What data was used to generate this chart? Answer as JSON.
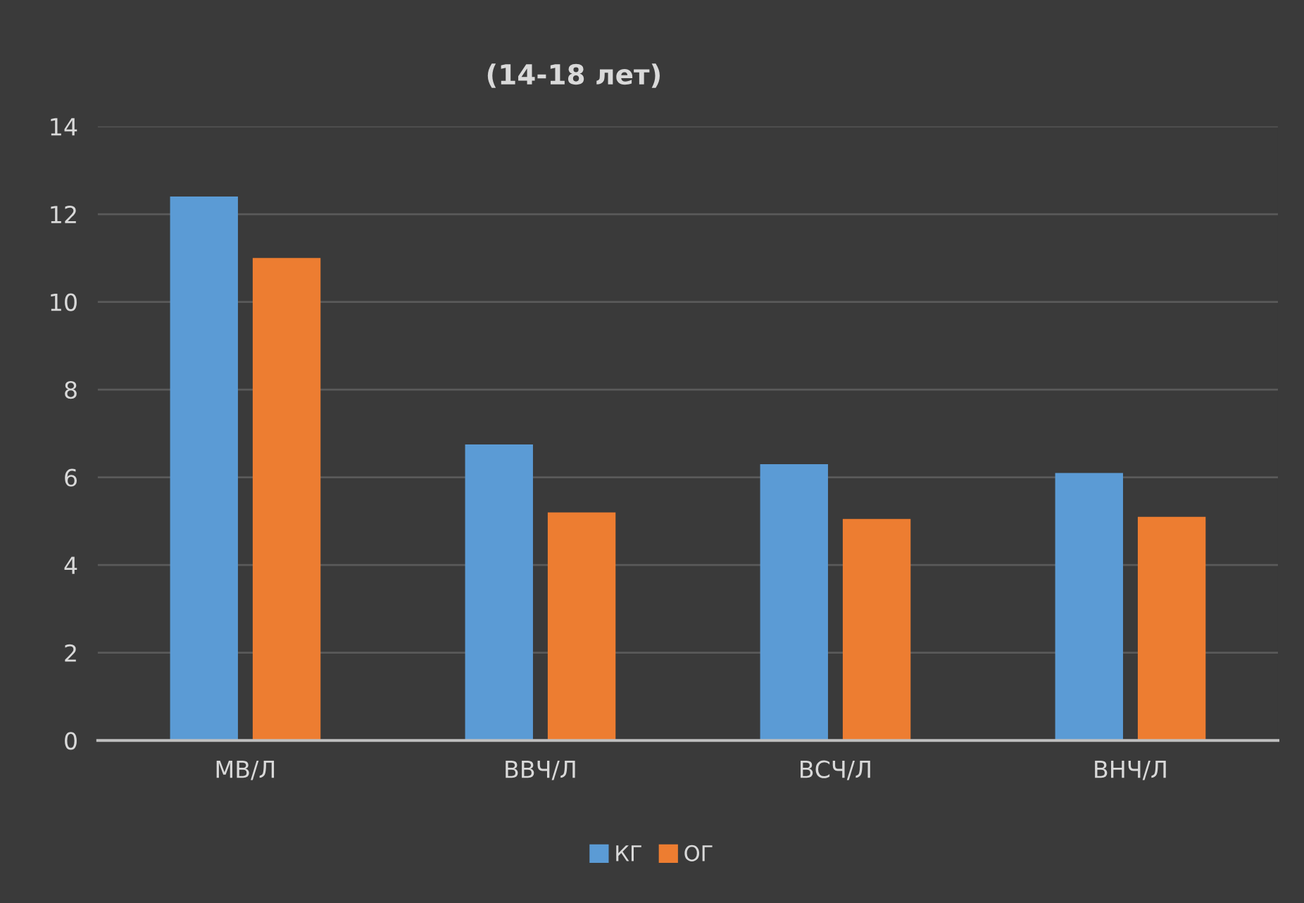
{
  "chart_data": {
    "type": "bar",
    "title": "(14-18 лет)",
    "categories": [
      "МВ/Л",
      "ВВЧ/Л",
      "ВСЧ/Л",
      "ВНЧ/Л"
    ],
    "series": [
      {
        "name": "КГ",
        "color": "#5b9bd5",
        "values": [
          12.4,
          6.75,
          6.3,
          6.1
        ]
      },
      {
        "name": "ОГ",
        "color": "#ed7d31",
        "values": [
          11.0,
          5.2,
          5.05,
          5.1
        ]
      }
    ],
    "ylim": [
      0,
      14
    ],
    "yticks": [
      0,
      2,
      4,
      6,
      8,
      10,
      12,
      14
    ],
    "grid": "y",
    "legend": "bottom"
  }
}
